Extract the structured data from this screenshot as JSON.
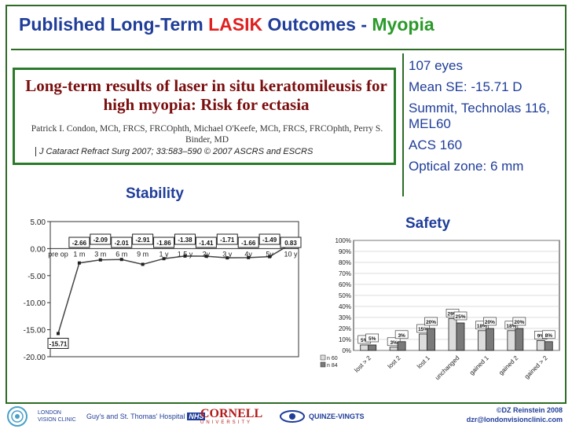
{
  "slide": {
    "title_part1": "Published Long-Term ",
    "title_part2": "LASIK",
    "title_part3": " Outcomes - ",
    "title_part4": "Myopia"
  },
  "paper": {
    "title": "Long-term results of laser in situ keratomileusis for high myopia: Risk for ectasia",
    "authors": "Patrick I. Condon, MCh, FRCS, FRCOphth, Michael O'Keefe, MCh, FRCS, FRCOphth, Perry S. Binder, MD",
    "citation": "J Cataract Refract Surg 2007; 33:583–590 © 2007 ASCRS and ESCRS"
  },
  "facts": [
    "107 eyes",
    "Mean SE: -15.71 D",
    "Summit, Technolas 116, MEL60",
    "ACS 160",
    "Optical zone: 6 mm"
  ],
  "labels": {
    "stability": "Stability",
    "safety": "Safety"
  },
  "chart_data": [
    {
      "type": "line",
      "categories": [
        "pre op",
        "1 m",
        "3 m",
        "6 m",
        "9 m",
        "1 y",
        "1.5 y",
        "2y",
        "3 y",
        "4y",
        "5y",
        "10 y"
      ],
      "values": [
        -15.71,
        -2.66,
        -2.09,
        -2.01,
        -2.91,
        -1.86,
        -1.38,
        -1.41,
        -1.71,
        -1.66,
        -1.49,
        0.83
      ],
      "data_labels": [
        "-15.71",
        "-2.66",
        "-2.09",
        "-2.01",
        "-2.91",
        "-1.86",
        "-1.38",
        "-1.41",
        "-1.71",
        "-1.66",
        "-1.49",
        "0.83"
      ],
      "yticks": [
        "5.00",
        "0.00",
        "-5.00",
        "-10.00",
        "-15.00",
        "-20.00"
      ],
      "ylim": [
        -20,
        5
      ]
    },
    {
      "type": "bar",
      "categories": [
        "lost > 2",
        "lost 2",
        "lost 1",
        "unchanged",
        "gained 1",
        "gained 2",
        "gained > 2"
      ],
      "series": [
        {
          "name": "n 60",
          "values": [
            5,
            3,
            15,
            29,
            18,
            18,
            9
          ]
        },
        {
          "name": "n 84",
          "values": [
            5,
            8,
            20,
            25,
            20,
            20,
            8
          ]
        }
      ],
      "data_labels_1": [
        "5%",
        "3%",
        "15%",
        "29%",
        "18%",
        "18%",
        "9%"
      ],
      "data_labels_2": [
        "5%",
        "3%",
        "20%",
        "25%",
        "20%",
        "20%",
        "8%"
      ],
      "yticks": [
        "100%",
        "90%",
        "80%",
        "70%",
        "60%",
        "50%",
        "40%",
        "30%",
        "20%",
        "10%",
        "0%"
      ],
      "ylim": [
        0,
        100
      ],
      "legend": [
        "n 60",
        "n 84"
      ]
    }
  ],
  "footer": {
    "logo1": "LONDON VISION CLINIC",
    "logo2": "Guy's and St. Thomas' Hospital",
    "logo2_badge": "NHS",
    "logo2_sub": "NHS Trust",
    "logo3": "CORNELL",
    "logo3_sub": "UNIVERSITY",
    "logo4": "QUINZE-VINGTS",
    "copyright": "©DZ Reinstein 2008",
    "email": "dzr@londonvisionclinic.com"
  }
}
